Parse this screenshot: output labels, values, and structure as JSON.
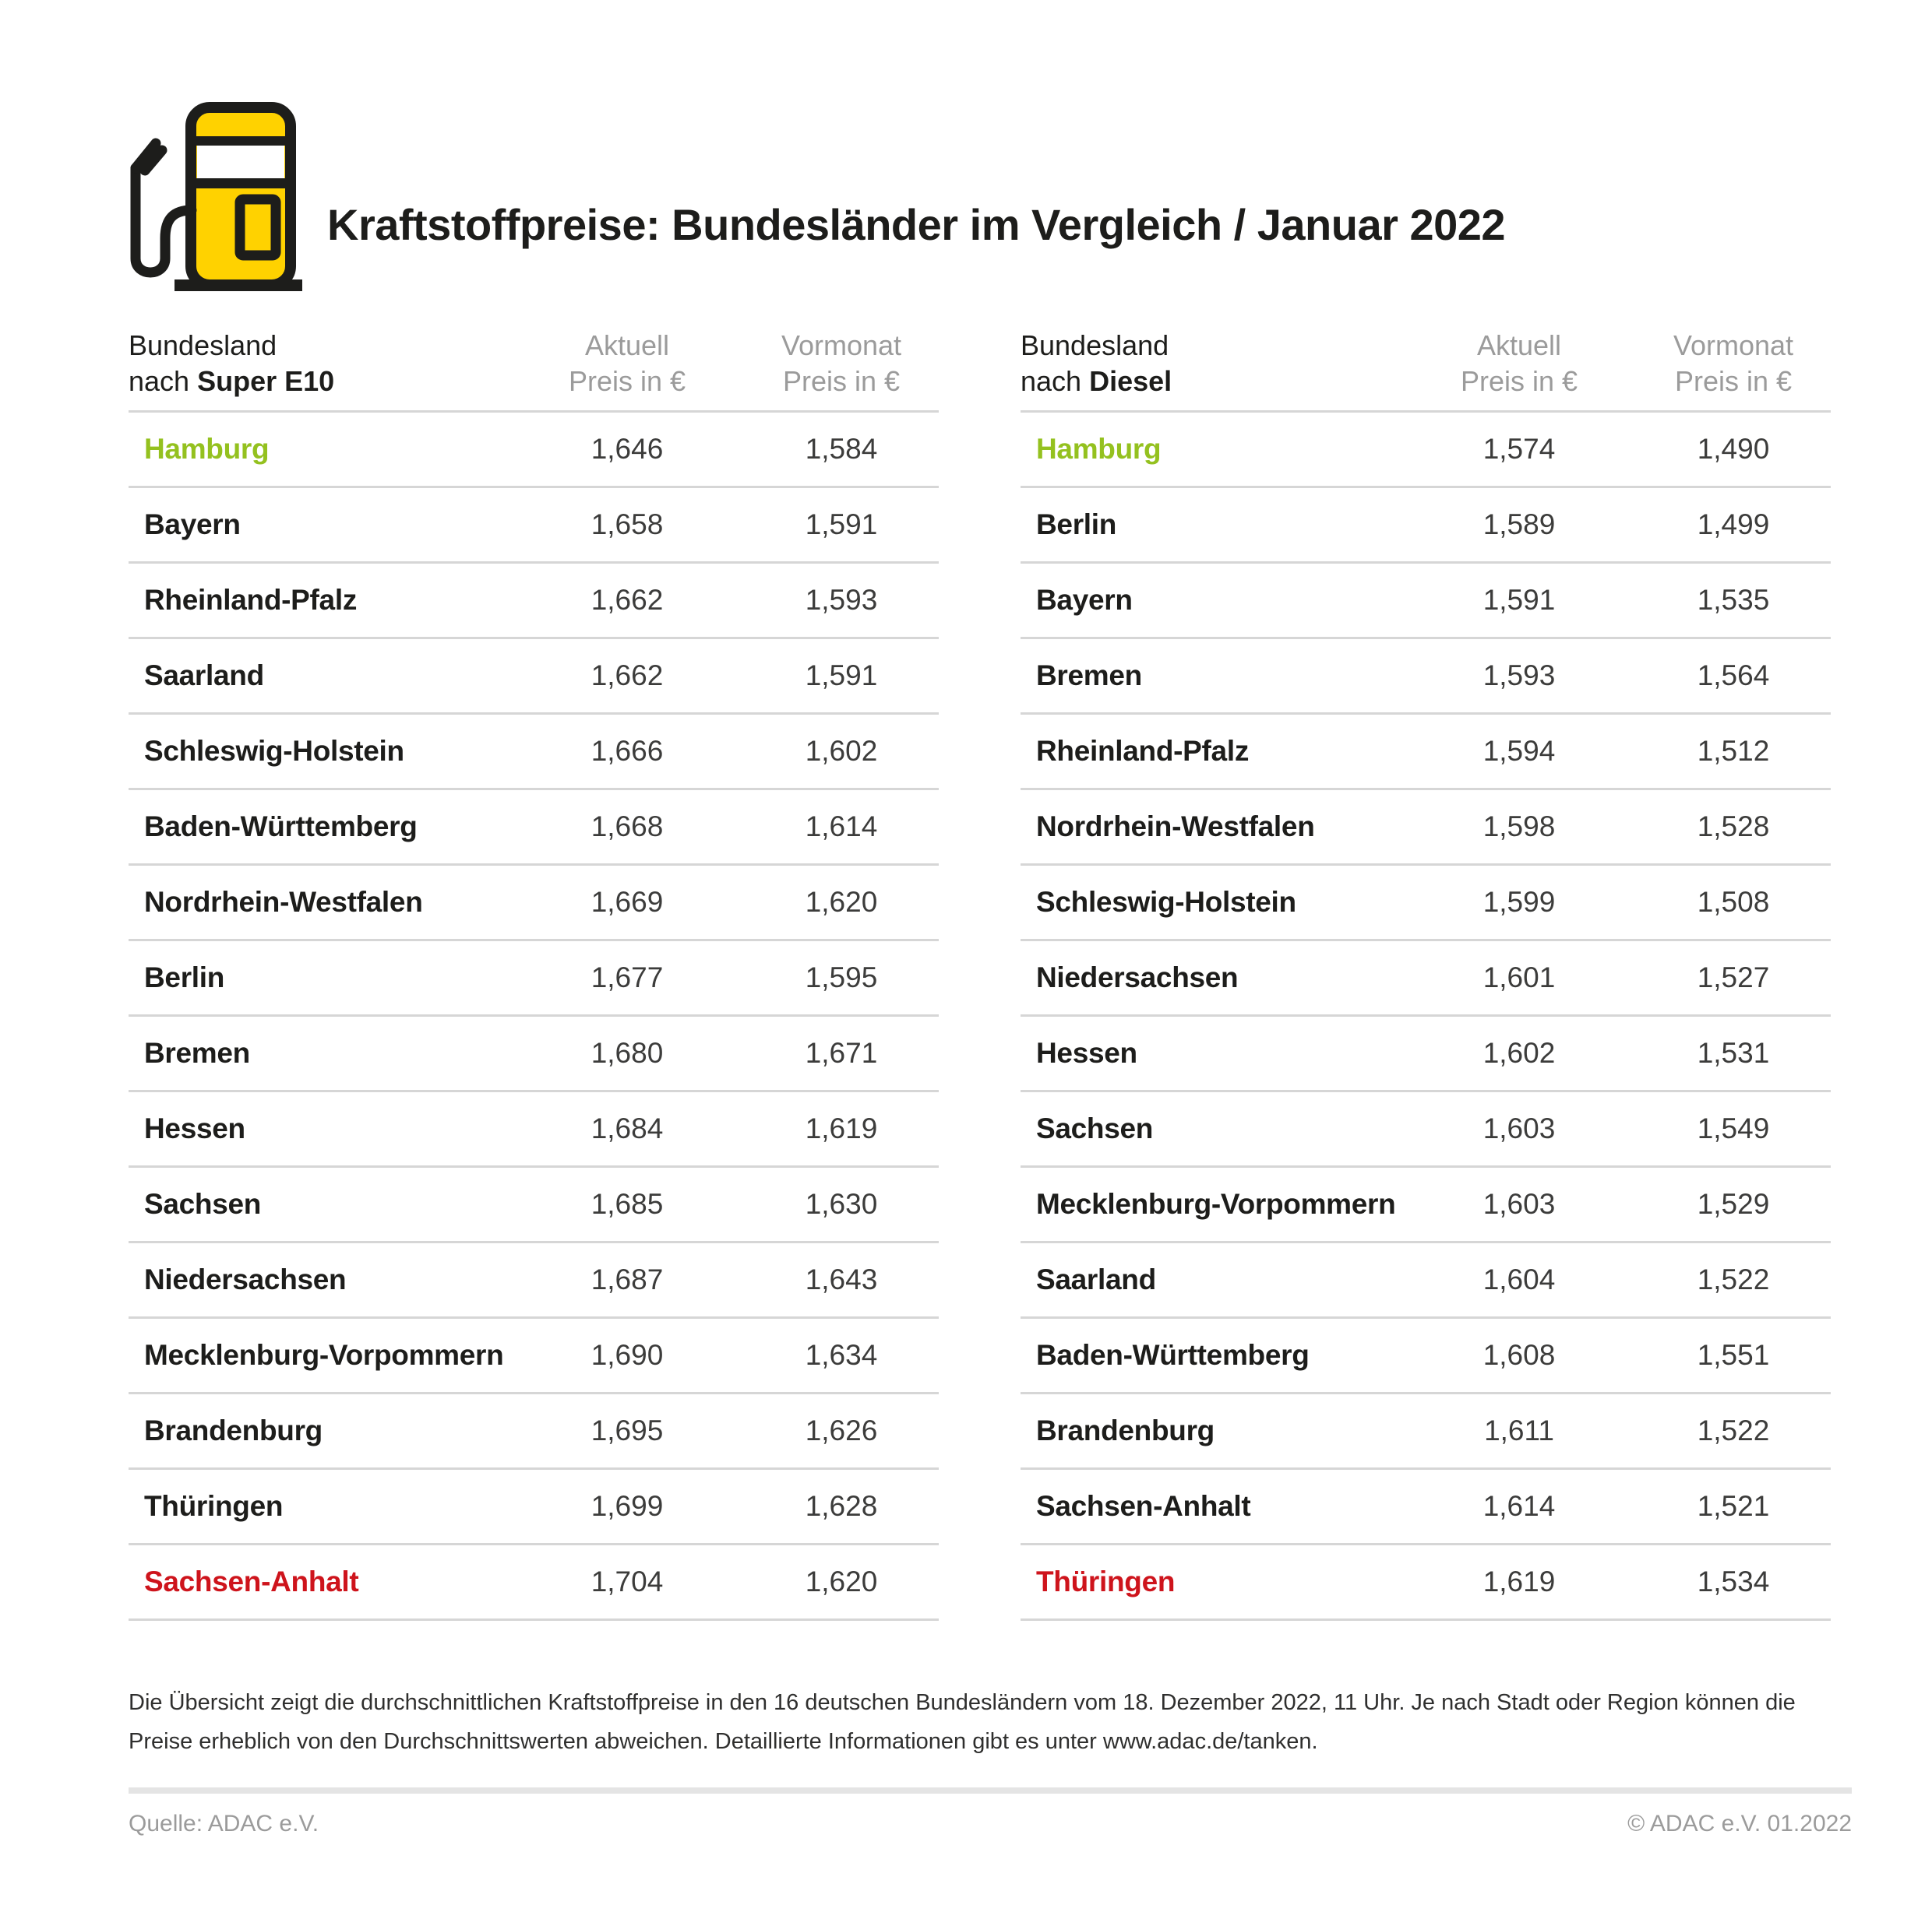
{
  "title": "Kraftstoffpreise: Bundesländer im Vergleich / Januar 2022",
  "colors": {
    "brand_yellow": "#FFD200",
    "outline_black": "#1D1D1B",
    "cheapest_green": "#94C11F",
    "most_expensive_red": "#CE141C",
    "muted_gray": "#9B9B9B",
    "row_line_gray": "#D6D6D6"
  },
  "chart_data": [
    {
      "type": "table",
      "title": "Bundesland nach Super E10",
      "header": {
        "region_line1": "Bundesland",
        "region_line2_normal": "nach ",
        "region_line2_bold": "Super E10",
        "aktuell_line1": "Aktuell",
        "aktuell_line2": "Preis in €",
        "vormonat_line1": "Vormonat",
        "vormonat_line2": "Preis in €"
      },
      "columns": [
        "Bundesland",
        "Aktuell Preis in €",
        "Vormonat Preis in €"
      ],
      "first_row_color": "green",
      "last_row_color": "red",
      "rows": [
        [
          "Hamburg",
          "1,646",
          "1,584"
        ],
        [
          "Bayern",
          "1,658",
          "1,591"
        ],
        [
          "Rheinland-Pfalz",
          "1,662",
          "1,593"
        ],
        [
          "Saarland",
          "1,662",
          "1,591"
        ],
        [
          "Schleswig-Holstein",
          "1,666",
          "1,602"
        ],
        [
          "Baden-Württemberg",
          "1,668",
          "1,614"
        ],
        [
          "Nordrhein-Westfalen",
          "1,669",
          "1,620"
        ],
        [
          "Berlin",
          "1,677",
          "1,595"
        ],
        [
          "Bremen",
          "1,680",
          "1,671"
        ],
        [
          "Hessen",
          "1,684",
          "1,619"
        ],
        [
          "Sachsen",
          "1,685",
          "1,630"
        ],
        [
          "Niedersachsen",
          "1,687",
          "1,643"
        ],
        [
          "Mecklenburg-Vorpommern",
          "1,690",
          "1,634"
        ],
        [
          "Brandenburg",
          "1,695",
          "1,626"
        ],
        [
          "Thüringen",
          "1,699",
          "1,628"
        ],
        [
          "Sachsen-Anhalt",
          "1,704",
          "1,620"
        ]
      ]
    },
    {
      "type": "table",
      "title": "Bundesland nach Diesel",
      "header": {
        "region_line1": "Bundesland",
        "region_line2_normal": "nach ",
        "region_line2_bold": "Diesel",
        "aktuell_line1": "Aktuell",
        "aktuell_line2": "Preis in €",
        "vormonat_line1": "Vormonat",
        "vormonat_line2": "Preis in €"
      },
      "columns": [
        "Bundesland",
        "Aktuell Preis in €",
        "Vormonat Preis in €"
      ],
      "first_row_color": "green",
      "last_row_color": "red",
      "rows": [
        [
          "Hamburg",
          "1,574",
          "1,490"
        ],
        [
          "Berlin",
          "1,589",
          "1,499"
        ],
        [
          "Bayern",
          "1,591",
          "1,535"
        ],
        [
          "Bremen",
          "1,593",
          "1,564"
        ],
        [
          "Rheinland-Pfalz",
          "1,594",
          "1,512"
        ],
        [
          "Nordrhein-Westfalen",
          "1,598",
          "1,528"
        ],
        [
          "Schleswig-Holstein",
          "1,599",
          "1,508"
        ],
        [
          "Niedersachsen",
          "1,601",
          "1,527"
        ],
        [
          "Hessen",
          "1,602",
          "1,531"
        ],
        [
          "Sachsen",
          "1,603",
          "1,549"
        ],
        [
          "Mecklenburg-Vorpommern",
          "1,603",
          "1,529"
        ],
        [
          "Saarland",
          "1,604",
          "1,522"
        ],
        [
          "Baden-Württemberg",
          "1,608",
          "1,551"
        ],
        [
          "Brandenburg",
          "1,611",
          "1,522"
        ],
        [
          "Sachsen-Anhalt",
          "1,614",
          "1,521"
        ],
        [
          "Thüringen",
          "1,619",
          "1,534"
        ]
      ]
    }
  ],
  "note_lines": [
    "Die Übersicht zeigt die durchschnittlichen Kraftstoffpreise in den 16 deutschen Bundesländern vom 18. Dezember 2022, 11 Uhr. Je nach Stadt oder Region können die",
    "Preise erheblich von den Durchschnittswerten abweichen. Detaillierte Informationen gibt es unter www.adac.de/tanken."
  ],
  "source": "Quelle: ADAC e.V.",
  "copyright": "© ADAC e.V. 01.2022"
}
